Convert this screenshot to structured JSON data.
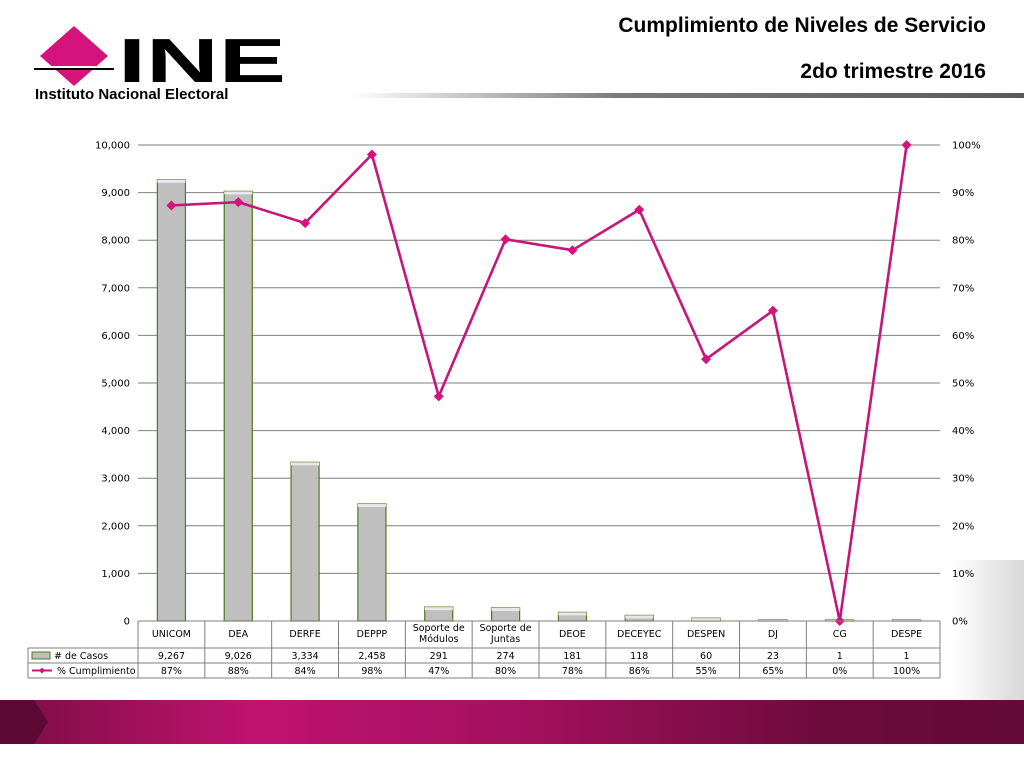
{
  "header": {
    "title": "Cumplimiento de Niveles de Servicio",
    "subtitle": "2do trimestre 2016",
    "logo_text": "INE",
    "logo_caption": "Instituto Nacional Electoral"
  },
  "colors": {
    "brand_magenta": "#d6137d",
    "bar_fill": "#bfbfbf",
    "bar_edge": "#4f7a1c",
    "line": "#c5167a",
    "footer_dark": "#5c0a33"
  },
  "chart_data": {
    "type": "bar",
    "categories": [
      "UNICOM",
      "DEA",
      "DERFE",
      "DEPPP",
      "Soporte de Módulos",
      "Soporte de Juntas",
      "DEOE",
      "DECEYEC",
      "DESPEN",
      "DJ",
      "CG",
      "DESPE"
    ],
    "category_lines": [
      [
        "UNICOM"
      ],
      [
        "DEA"
      ],
      [
        "DERFE"
      ],
      [
        "DEPPP"
      ],
      [
        "Soporte de",
        "Módulos"
      ],
      [
        "Soporte de",
        "Juntas"
      ],
      [
        "DEOE"
      ],
      [
        "DECEYEC"
      ],
      [
        "DESPEN"
      ],
      [
        "DJ"
      ],
      [
        "CG"
      ],
      [
        "DESPE"
      ]
    ],
    "series": [
      {
        "name": "# de Casos",
        "type": "bar",
        "axis": "left",
        "values": [
          9267,
          9026,
          3334,
          2458,
          291,
          274,
          181,
          118,
          60,
          23,
          1,
          1
        ],
        "labels": [
          "9,267",
          "9,026",
          "3,334",
          "2,458",
          "291",
          "274",
          "181",
          "118",
          "60",
          "23",
          "1",
          "1"
        ]
      },
      {
        "name": "% Cumplimiento",
        "type": "line",
        "axis": "right",
        "values": [
          87.3,
          88,
          83.6,
          98,
          47.2,
          80.2,
          77.9,
          86.4,
          55,
          65.2,
          0,
          100
        ],
        "labels": [
          "87%",
          "88%",
          "84%",
          "98%",
          "47%",
          "80%",
          "78%",
          "86%",
          "55%",
          "65%",
          "0%",
          "100%"
        ]
      }
    ],
    "ylim": [
      0,
      10000
    ],
    "y_ticks": [
      "0",
      "1,000",
      "2,000",
      "3,000",
      "4,000",
      "5,000",
      "6,000",
      "7,000",
      "8,000",
      "9,000",
      "10,000"
    ],
    "y2lim": [
      0,
      100
    ],
    "y2_ticks": [
      "0%",
      "10%",
      "20%",
      "30%",
      "40%",
      "50%",
      "60%",
      "70%",
      "80%",
      "90%",
      "100%"
    ],
    "grid": true,
    "legend": "data-table"
  }
}
